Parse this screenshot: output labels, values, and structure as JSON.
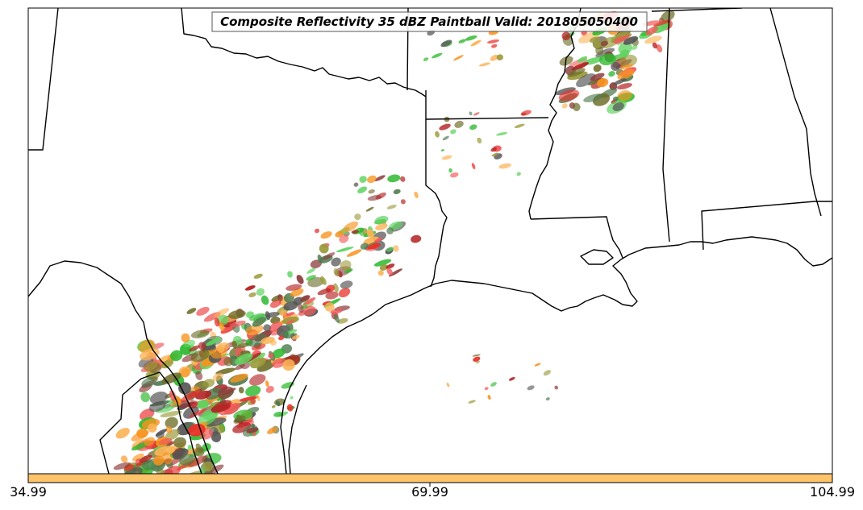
{
  "title": "Composite Reflectivity 35 dBZ Paintball Valid: 201805050400",
  "colorbar": {
    "fill_color": "#FDC46B",
    "ticks": [
      "34.99",
      "69.99",
      "104.99"
    ]
  },
  "map": {
    "boundary_color": "#000000",
    "background": "#ffffff"
  },
  "palette": {
    "orange": "#F7931E",
    "light-orange": "#FBB255",
    "red": "#E8312A",
    "salmon": "#F15A5A",
    "dark-red": "#B22222",
    "maroon": "#8C3A3A",
    "olive": "#9A9A3A",
    "dark-olive": "#6E6E2A",
    "green": "#2DB82D",
    "light-green": "#5FD35F",
    "gray-green": "#4F7A4F",
    "dark-gray": "#555555"
  }
}
